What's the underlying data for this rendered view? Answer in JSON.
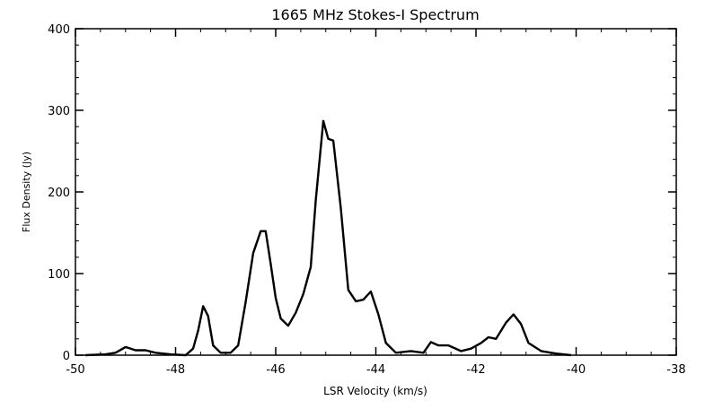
{
  "chart_data": {
    "type": "line",
    "title": "1665 MHz Stokes-I Spectrum",
    "xlabel": "LSR Velocity (km/s)",
    "ylabel": "Flux Density (Jy)",
    "xlim": [
      -50,
      -38
    ],
    "ylim": [
      0,
      400
    ],
    "xticks": [
      -50,
      -48,
      -46,
      -44,
      -42,
      -40,
      -38
    ],
    "yticks": [
      0,
      100,
      200,
      300,
      400
    ],
    "xtick_labels": [
      "-50",
      "-48",
      "-46",
      "-44",
      "-42",
      "-40",
      "-38"
    ],
    "ytick_labels": [
      "0",
      "100",
      "200",
      "300",
      "400"
    ],
    "grid": false,
    "series": [
      {
        "color": "#000000",
        "points": [
          [
            -49.8,
            0
          ],
          [
            -49.4,
            1
          ],
          [
            -49.2,
            3
          ],
          [
            -49.0,
            10
          ],
          [
            -48.8,
            6
          ],
          [
            -48.6,
            6
          ],
          [
            -48.4,
            3
          ],
          [
            -48.1,
            1
          ],
          [
            -47.8,
            0
          ],
          [
            -47.65,
            8
          ],
          [
            -47.55,
            30
          ],
          [
            -47.45,
            60
          ],
          [
            -47.35,
            48
          ],
          [
            -47.25,
            12
          ],
          [
            -47.1,
            3
          ],
          [
            -46.9,
            3
          ],
          [
            -46.75,
            12
          ],
          [
            -46.6,
            65
          ],
          [
            -46.45,
            125
          ],
          [
            -46.3,
            152
          ],
          [
            -46.2,
            152
          ],
          [
            -46.1,
            112
          ],
          [
            -46.0,
            70
          ],
          [
            -45.9,
            45
          ],
          [
            -45.75,
            36
          ],
          [
            -45.6,
            52
          ],
          [
            -45.45,
            75
          ],
          [
            -45.3,
            108
          ],
          [
            -45.2,
            190
          ],
          [
            -45.05,
            287
          ],
          [
            -44.95,
            265
          ],
          [
            -44.85,
            263
          ],
          [
            -44.7,
            180
          ],
          [
            -44.55,
            80
          ],
          [
            -44.4,
            66
          ],
          [
            -44.25,
            68
          ],
          [
            -44.1,
            78
          ],
          [
            -43.95,
            50
          ],
          [
            -43.8,
            15
          ],
          [
            -43.6,
            3
          ],
          [
            -43.3,
            5
          ],
          [
            -43.05,
            3
          ],
          [
            -42.9,
            16
          ],
          [
            -42.75,
            12
          ],
          [
            -42.55,
            12
          ],
          [
            -42.3,
            5
          ],
          [
            -42.1,
            8
          ],
          [
            -41.9,
            15
          ],
          [
            -41.75,
            22
          ],
          [
            -41.6,
            20
          ],
          [
            -41.4,
            40
          ],
          [
            -41.25,
            50
          ],
          [
            -41.1,
            38
          ],
          [
            -40.95,
            15
          ],
          [
            -40.7,
            5
          ],
          [
            -40.4,
            2
          ],
          [
            -40.1,
            0
          ]
        ]
      }
    ]
  }
}
